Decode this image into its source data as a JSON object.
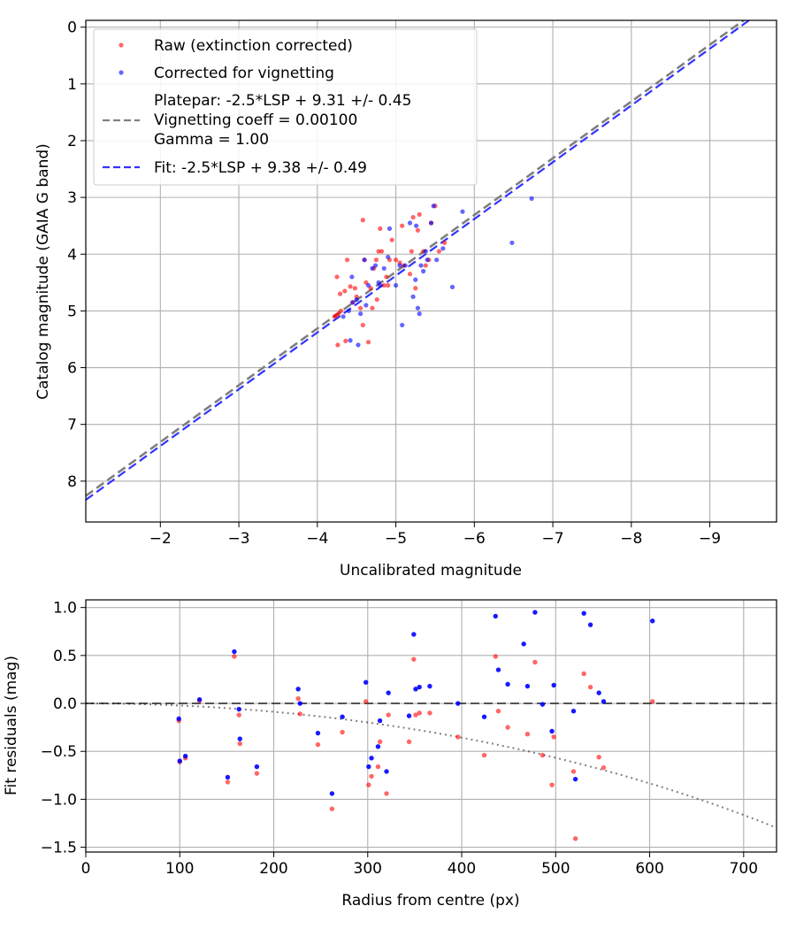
{
  "chart_data": [
    {
      "type": "scatter",
      "xlabel": "Uncalibrated magnitude",
      "ylabel": "Catalog magnitude (GAIA G band)",
      "xlim": [
        -1.05,
        -9.85
      ],
      "ylim": [
        8.72,
        -0.12
      ],
      "x_ticks": [
        -2,
        -3,
        -4,
        -5,
        -6,
        -7,
        -8,
        -9
      ],
      "x_tick_labels": [
        "−2",
        "−3",
        "−4",
        "−5",
        "−6",
        "−7",
        "−8",
        "−9"
      ],
      "y_ticks": [
        0,
        1,
        2,
        3,
        4,
        5,
        6,
        7,
        8
      ],
      "y_tick_labels": [
        "0",
        "1",
        "2",
        "3",
        "4",
        "5",
        "6",
        "7",
        "8"
      ],
      "grid": true,
      "legend_position": "top-left",
      "series": [
        {
          "name": "Raw (extinction corrected)",
          "kind": "scatter",
          "color": "#ff0000",
          "points": [
            [
              -4.24,
              5.08
            ],
            [
              -4.27,
              5.05
            ],
            [
              -4.3,
              5.0
            ],
            [
              -4.22,
              5.1
            ],
            [
              -4.29,
              4.7
            ],
            [
              -4.25,
              4.4
            ],
            [
              -4.26,
              5.6
            ],
            [
              -4.35,
              4.65
            ],
            [
              -4.36,
              5.53
            ],
            [
              -4.38,
              4.1
            ],
            [
              -4.42,
              4.57
            ],
            [
              -4.45,
              4.85
            ],
            [
              -4.48,
              4.6
            ],
            [
              -4.5,
              4.75
            ],
            [
              -4.55,
              4.95
            ],
            [
              -4.58,
              5.25
            ],
            [
              -4.6,
              4.1
            ],
            [
              -4.62,
              4.5
            ],
            [
              -4.58,
              3.4
            ],
            [
              -4.68,
              4.6
            ],
            [
              -4.72,
              4.25
            ],
            [
              -4.75,
              4.1
            ],
            [
              -4.76,
              4.8
            ],
            [
              -4.78,
              3.95
            ],
            [
              -4.82,
              3.95
            ],
            [
              -4.8,
              3.55
            ],
            [
              -4.85,
              4.55
            ],
            [
              -4.88,
              4.4
            ],
            [
              -4.9,
              4.55
            ],
            [
              -4.92,
              4.1
            ],
            [
              -4.95,
              3.75
            ],
            [
              -5.0,
              4.1
            ],
            [
              -5.05,
              4.15
            ],
            [
              -5.08,
              3.5
            ],
            [
              -5.1,
              4.2
            ],
            [
              -5.18,
              4.35
            ],
            [
              -5.2,
              3.95
            ],
            [
              -5.22,
              3.35
            ],
            [
              -5.25,
              4.6
            ],
            [
              -5.28,
              3.58
            ],
            [
              -5.3,
              3.3
            ],
            [
              -5.35,
              3.95
            ],
            [
              -5.38,
              4.2
            ],
            [
              -5.42,
              4.1
            ],
            [
              -5.45,
              3.45
            ],
            [
              -5.5,
              3.15
            ],
            [
              -5.55,
              3.95
            ],
            [
              -5.62,
              3.8
            ],
            [
              -4.65,
              5.55
            ],
            [
              -4.7,
              4.95
            ]
          ]
        },
        {
          "name": "Corrected for vignetting",
          "kind": "scatter",
          "color": "#0000ff",
          "points": [
            [
              -4.33,
              5.1
            ],
            [
              -4.4,
              5.0
            ],
            [
              -4.42,
              5.52
            ],
            [
              -4.45,
              4.85
            ],
            [
              -4.5,
              4.8
            ],
            [
              -4.52,
              5.6
            ],
            [
              -4.55,
              5.05
            ],
            [
              -4.6,
              4.1
            ],
            [
              -4.62,
              4.9
            ],
            [
              -4.65,
              4.55
            ],
            [
              -4.7,
              4.25
            ],
            [
              -4.74,
              4.2
            ],
            [
              -4.78,
              4.5
            ],
            [
              -4.8,
              4.55
            ],
            [
              -4.85,
              4.25
            ],
            [
              -4.9,
              4.05
            ],
            [
              -4.92,
              3.55
            ],
            [
              -5.0,
              4.55
            ],
            [
              -5.05,
              4.2
            ],
            [
              -5.08,
              5.25
            ],
            [
              -5.12,
              4.2
            ],
            [
              -5.18,
              3.45
            ],
            [
              -5.22,
              4.75
            ],
            [
              -5.25,
              4.45
            ],
            [
              -5.28,
              4.95
            ],
            [
              -5.3,
              5.05
            ],
            [
              -5.32,
              4.2
            ],
            [
              -5.35,
              4.3
            ],
            [
              -5.38,
              3.95
            ],
            [
              -5.4,
              4.1
            ],
            [
              -5.45,
              3.45
            ],
            [
              -5.48,
              3.15
            ],
            [
              -5.52,
              4.1
            ],
            [
              -5.6,
              3.9
            ],
            [
              -5.72,
              4.58
            ],
            [
              -5.85,
              3.25
            ],
            [
              -6.48,
              3.8
            ],
            [
              -6.73,
              3.02
            ],
            [
              -5.26,
              3.5
            ],
            [
              -4.44,
              4.4
            ]
          ]
        },
        {
          "name": "Platepar: -2.5*LSP + 9.31 +/- 0.45\nVignetting coeff = 0.00100\nGamma = 1.00",
          "kind": "line",
          "color": "#808080",
          "line": [
            [
              -1.05,
              8.26
            ],
            [
              -9.85,
              -0.54
            ]
          ]
        },
        {
          "name": "Fit: -2.5*LSP + 9.38 +/- 0.49",
          "kind": "line",
          "color": "#3333ff",
          "line": [
            [
              -1.05,
              8.33
            ],
            [
              -9.85,
              -0.47
            ]
          ]
        }
      ]
    },
    {
      "type": "scatter",
      "xlabel": "Radius from centre (px)",
      "ylabel": "Fit residuals (mag)",
      "xlim": [
        0,
        735
      ],
      "ylim": [
        -1.55,
        1.08
      ],
      "x_ticks": [
        0,
        100,
        200,
        300,
        400,
        500,
        600,
        700
      ],
      "x_tick_labels": [
        "0",
        "100",
        "200",
        "300",
        "400",
        "500",
        "600",
        "700"
      ],
      "y_ticks": [
        -1.5,
        -1.0,
        -0.5,
        0.0,
        0.5,
        1.0
      ],
      "y_tick_labels": [
        "−1.5",
        "−1.0",
        "−0.5",
        "0.0",
        "0.5",
        "1.0"
      ],
      "grid": true,
      "zero_line": 0,
      "vignetting_curve_coeff": 0.001,
      "series": [
        {
          "name": "Raw (extinction corrected)",
          "color": "#ff0000",
          "points": [
            [
              99,
              -0.18
            ],
            [
              100,
              -0.61
            ],
            [
              106,
              -0.57
            ],
            [
              121,
              0.03
            ],
            [
              151,
              -0.82
            ],
            [
              158,
              0.49
            ],
            [
              163,
              -0.12
            ],
            [
              164,
              -0.42
            ],
            [
              182,
              -0.73
            ],
            [
              226,
              0.05
            ],
            [
              228,
              -0.11
            ],
            [
              247,
              -0.43
            ],
            [
              262,
              -1.1
            ],
            [
              273,
              -0.3
            ],
            [
              298,
              0.02
            ],
            [
              301,
              -0.85
            ],
            [
              304,
              -0.76
            ],
            [
              311,
              -0.66
            ],
            [
              313,
              -0.4
            ],
            [
              320,
              -0.94
            ],
            [
              322,
              -0.12
            ],
            [
              344,
              -0.4
            ],
            [
              349,
              0.46
            ],
            [
              351,
              -0.12
            ],
            [
              355,
              -0.1
            ],
            [
              366,
              -0.1
            ],
            [
              396,
              -0.35
            ],
            [
              424,
              -0.54
            ],
            [
              436,
              0.49
            ],
            [
              439,
              -0.08
            ],
            [
              449,
              -0.25
            ],
            [
              470,
              -0.32
            ],
            [
              478,
              0.43
            ],
            [
              486,
              -0.54
            ],
            [
              496,
              -0.85
            ],
            [
              498,
              -0.35
            ],
            [
              519,
              -0.71
            ],
            [
              521,
              -1.41
            ],
            [
              530,
              0.31
            ],
            [
              537,
              0.17
            ],
            [
              546,
              -0.56
            ],
            [
              551,
              -0.67
            ],
            [
              603,
              0.02
            ]
          ]
        },
        {
          "name": "Corrected for vignetting",
          "color": "#0000ff",
          "points": [
            [
              99,
              -0.16
            ],
            [
              100,
              -0.6
            ],
            [
              106,
              -0.55
            ],
            [
              121,
              0.04
            ],
            [
              151,
              -0.77
            ],
            [
              158,
              0.54
            ],
            [
              163,
              -0.06
            ],
            [
              164,
              -0.37
            ],
            [
              182,
              -0.66
            ],
            [
              226,
              0.15
            ],
            [
              228,
              0.0
            ],
            [
              247,
              -0.31
            ],
            [
              262,
              -0.94
            ],
            [
              273,
              -0.14
            ],
            [
              298,
              0.22
            ],
            [
              301,
              -0.66
            ],
            [
              304,
              -0.57
            ],
            [
              311,
              -0.45
            ],
            [
              313,
              -0.18
            ],
            [
              320,
              -0.71
            ],
            [
              322,
              0.11
            ],
            [
              344,
              -0.13
            ],
            [
              349,
              0.72
            ],
            [
              351,
              0.15
            ],
            [
              355,
              0.17
            ],
            [
              366,
              0.18
            ],
            [
              396,
              0.0
            ],
            [
              424,
              -0.14
            ],
            [
              436,
              0.91
            ],
            [
              439,
              0.35
            ],
            [
              449,
              0.2
            ],
            [
              470,
              0.18
            ],
            [
              478,
              0.95
            ],
            [
              486,
              -0.01
            ],
            [
              496,
              -0.29
            ],
            [
              498,
              0.19
            ],
            [
              519,
              -0.08
            ],
            [
              521,
              -0.79
            ],
            [
              530,
              0.94
            ],
            [
              537,
              0.82
            ],
            [
              546,
              0.11
            ],
            [
              551,
              0.02
            ],
            [
              603,
              0.86
            ],
            [
              466,
              0.62
            ]
          ]
        }
      ]
    }
  ]
}
